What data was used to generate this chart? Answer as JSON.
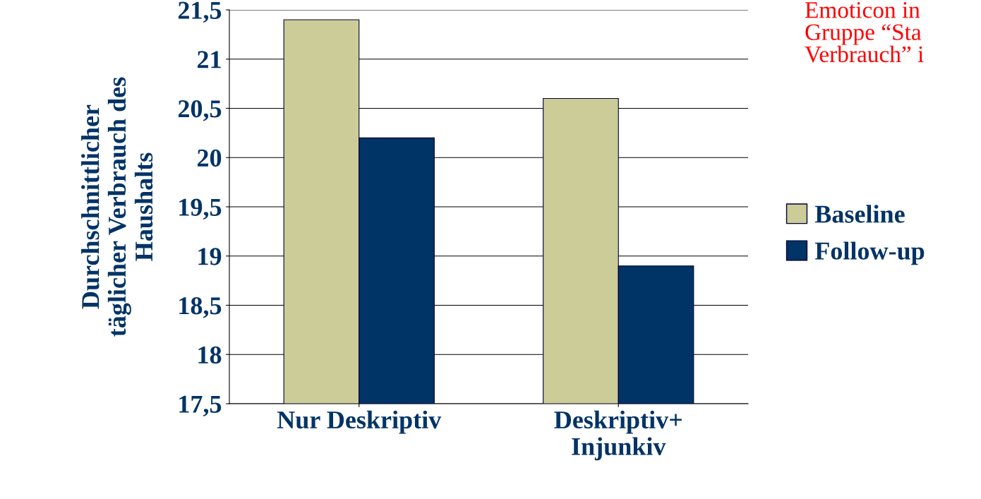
{
  "chart_data": {
    "type": "bar",
    "ylabel": "Durchschnittlicher\ntäglicher Verbrauch des\nHaushalts",
    "categories": [
      "Nur Deskriptiv",
      "Deskriptiv+\nInjunkiv"
    ],
    "series": [
      {
        "name": "Baseline",
        "color": "#cccc99",
        "values": [
          21.4,
          20.6
        ]
      },
      {
        "name": "Follow-up",
        "color": "#003366",
        "values": [
          20.2,
          18.9
        ]
      }
    ],
    "ylim": [
      17.5,
      21.5
    ],
    "yticks": [
      {
        "value": 17.5,
        "label": "17,5"
      },
      18,
      {
        "value": 18.5,
        "label": "18,5"
      },
      19,
      {
        "value": 19.5,
        "label": "19,5"
      },
      20,
      {
        "value": 20.5,
        "label": "20,5"
      },
      21,
      {
        "value": 21.5,
        "label": "21,5"
      }
    ],
    "grid": "y",
    "legend": "right",
    "annotations": [
      "Emoticon in\nGruppe “Sta\nVerbrauch” i"
    ]
  }
}
